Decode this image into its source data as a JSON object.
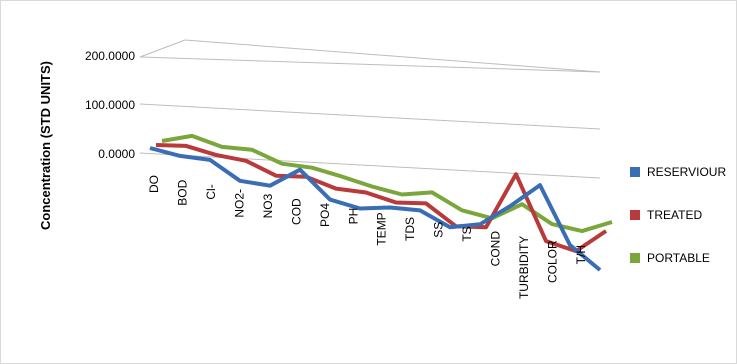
{
  "chart_data": {
    "type": "line",
    "title": "",
    "xlabel": "",
    "ylabel": "Concentration (STD UNITS)",
    "y_ticks": [
      "0.0000",
      "100.0000",
      "200.0000"
    ],
    "ylim": [
      0,
      200
    ],
    "categories": [
      "DO",
      "BOD",
      "Cl-",
      "NO2-",
      "NO3",
      "COD",
      "PO4",
      "PH",
      "TEMP",
      "TDS",
      "SS",
      "TS",
      "COND",
      "TURBIDITY",
      "COLOR",
      "T/H"
    ],
    "series": [
      {
        "name": "RESERVIOUR",
        "color": "#3a6eb4",
        "values": [
          8,
          6,
          12,
          -16,
          -12,
          34,
          -12,
          -16,
          0,
          8,
          -12,
          8,
          58,
          114,
          8,
          -28
        ]
      },
      {
        "name": "TREATED",
        "color": "#b83a3a",
        "values": [
          -2,
          10,
          6,
          8,
          -8,
          4,
          -6,
          0,
          -6,
          6,
          -26,
          -14,
          106,
          -14,
          -20,
          34
        ]
      },
      {
        "name": "PORTABLE",
        "color": "#7aa63c",
        "values": [
          -10,
          14,
          6,
          14,
          0,
          6,
          2,
          -4,
          -6,
          12,
          -10,
          -12,
          30,
          4,
          4,
          36
        ]
      }
    ],
    "grid": true,
    "legend": "right",
    "style": "3d-perspective"
  }
}
